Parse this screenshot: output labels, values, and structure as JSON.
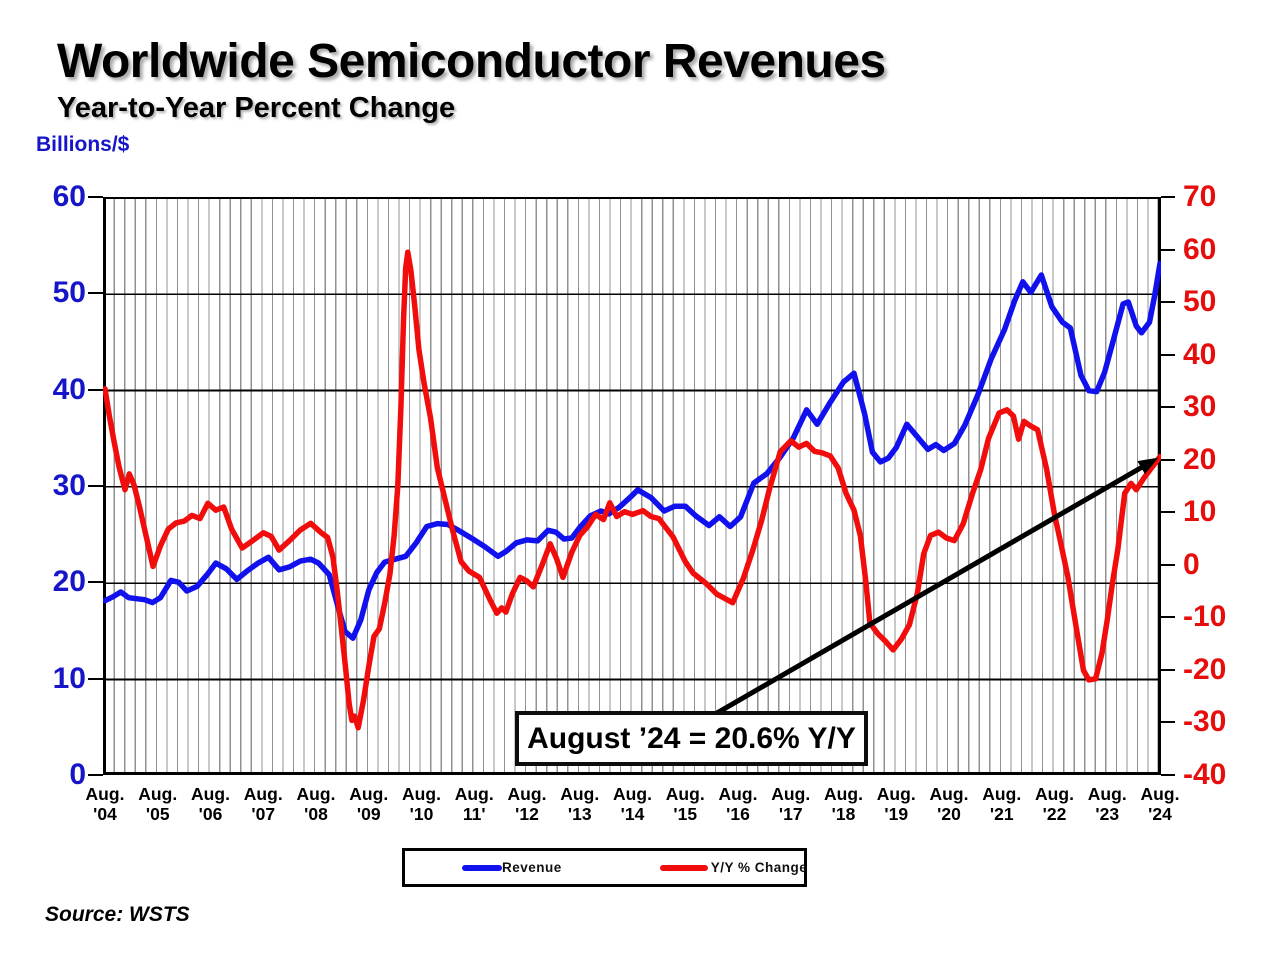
{
  "header": {
    "title": "Worldwide Semiconductor Revenues",
    "subtitle": "Year-to-Year Percent Change"
  },
  "left_axis_unit_label": "Billions/$",
  "source_label": "Source: WSTS",
  "annotation_text": "August ’24 = 20.6% Y/Y",
  "legend": {
    "items": [
      {
        "label": "Revenue",
        "color": "#1111ee"
      },
      {
        "label": "Y/Y % Change",
        "color": "#f20d0d"
      }
    ]
  },
  "chart_data": {
    "type": "line",
    "title": "Worldwide Semiconductor Revenues",
    "subtitle": "Year-to-Year Percent Change",
    "x_unit": "years since Aug 2004 (0 = Aug '04, 20 = Aug '24, monthly data)",
    "x_range": [
      0,
      20
    ],
    "grid": "dense vertical gray lines (5 per year), horizontal black lines each 10 units of left axis",
    "legend_position": "bottom-center boxed",
    "x_tick_labels": [
      [
        "Aug.",
        "'04"
      ],
      [
        "Aug.",
        "'05"
      ],
      [
        "Aug.",
        "'06"
      ],
      [
        "Aug.",
        "'07"
      ],
      [
        "Aug.",
        "'08"
      ],
      [
        "Aug.",
        "'09"
      ],
      [
        "Aug.",
        "'10"
      ],
      [
        "Aug.",
        "11'"
      ],
      [
        "Aug.",
        "'12"
      ],
      [
        "Aug.",
        "'13"
      ],
      [
        "Aug.",
        "'14"
      ],
      [
        "Aug.",
        "'15"
      ],
      [
        "Aug.",
        "'16"
      ],
      [
        "Aug.",
        "'17"
      ],
      [
        "Aug.",
        "'18"
      ],
      [
        "Aug.",
        "'19"
      ],
      [
        "Aug.",
        "'20"
      ],
      [
        "Aug.",
        "'21"
      ],
      [
        "Aug.",
        "'22"
      ],
      [
        "Aug.",
        "'23"
      ],
      [
        "Aug.",
        "'24"
      ]
    ],
    "left_axis": {
      "label": "Billions/$",
      "min": 0,
      "max": 60,
      "ticks": [
        60,
        50,
        40,
        30,
        20,
        10,
        0
      ],
      "color": "#1616c8"
    },
    "right_axis": {
      "label": "Y/Y % Change",
      "min": -40,
      "max": 70,
      "ticks": [
        70,
        60,
        50,
        40,
        30,
        20,
        10,
        0,
        -10,
        -20,
        -30,
        -40
      ],
      "color": "#e60d0d"
    },
    "series": [
      {
        "name": "Revenue",
        "axis": "left",
        "color": "#1111ee",
        "data_name": "revenue-line",
        "points": [
          [
            0,
            18.1
          ],
          [
            0.15,
            18.5
          ],
          [
            0.3,
            19.0
          ],
          [
            0.45,
            18.4
          ],
          [
            0.6,
            18.3
          ],
          [
            0.75,
            18.2
          ],
          [
            0.9,
            17.9
          ],
          [
            1.05,
            18.4
          ],
          [
            1.25,
            20.2
          ],
          [
            1.4,
            20.0
          ],
          [
            1.55,
            19.1
          ],
          [
            1.75,
            19.6
          ],
          [
            1.95,
            20.9
          ],
          [
            2.1,
            22.0
          ],
          [
            2.3,
            21.4
          ],
          [
            2.5,
            20.3
          ],
          [
            2.7,
            21.2
          ],
          [
            2.9,
            22.0
          ],
          [
            3.1,
            22.6
          ],
          [
            3.3,
            21.3
          ],
          [
            3.5,
            21.6
          ],
          [
            3.7,
            22.2
          ],
          [
            3.9,
            22.4
          ],
          [
            4.05,
            22.0
          ],
          [
            4.25,
            20.8
          ],
          [
            4.4,
            17.8
          ],
          [
            4.55,
            14.9
          ],
          [
            4.7,
            14.2
          ],
          [
            4.85,
            16.1
          ],
          [
            5.0,
            19.2
          ],
          [
            5.15,
            21.0
          ],
          [
            5.3,
            22.1
          ],
          [
            5.5,
            22.4
          ],
          [
            5.7,
            22.7
          ],
          [
            5.9,
            24.1
          ],
          [
            6.1,
            25.8
          ],
          [
            6.3,
            26.1
          ],
          [
            6.5,
            26.0
          ],
          [
            6.7,
            25.4
          ],
          [
            7.0,
            24.4
          ],
          [
            7.2,
            23.7
          ],
          [
            7.45,
            22.7
          ],
          [
            7.6,
            23.2
          ],
          [
            7.8,
            24.1
          ],
          [
            8.0,
            24.4
          ],
          [
            8.2,
            24.3
          ],
          [
            8.4,
            25.4
          ],
          [
            8.55,
            25.2
          ],
          [
            8.7,
            24.5
          ],
          [
            8.85,
            24.6
          ],
          [
            9.0,
            25.7
          ],
          [
            9.2,
            26.9
          ],
          [
            9.4,
            27.4
          ],
          [
            9.55,
            27.1
          ],
          [
            9.75,
            27.8
          ],
          [
            9.95,
            28.8
          ],
          [
            10.1,
            29.6
          ],
          [
            10.35,
            28.8
          ],
          [
            10.6,
            27.4
          ],
          [
            10.8,
            27.9
          ],
          [
            11.0,
            27.9
          ],
          [
            11.2,
            26.9
          ],
          [
            11.45,
            25.9
          ],
          [
            11.65,
            26.8
          ],
          [
            11.85,
            25.8
          ],
          [
            12.05,
            26.8
          ],
          [
            12.3,
            30.3
          ],
          [
            12.55,
            31.3
          ],
          [
            12.8,
            33.0
          ],
          [
            13.05,
            35.0
          ],
          [
            13.3,
            37.9
          ],
          [
            13.5,
            36.4
          ],
          [
            13.75,
            38.7
          ],
          [
            14.0,
            40.8
          ],
          [
            14.2,
            41.7
          ],
          [
            14.4,
            37.5
          ],
          [
            14.55,
            33.5
          ],
          [
            14.7,
            32.5
          ],
          [
            14.85,
            32.9
          ],
          [
            15.0,
            34.0
          ],
          [
            15.2,
            36.4
          ],
          [
            15.4,
            35.1
          ],
          [
            15.6,
            33.8
          ],
          [
            15.75,
            34.3
          ],
          [
            15.9,
            33.7
          ],
          [
            16.1,
            34.4
          ],
          [
            16.3,
            36.3
          ],
          [
            16.55,
            39.5
          ],
          [
            16.8,
            43.2
          ],
          [
            17.05,
            46.2
          ],
          [
            17.25,
            49.3
          ],
          [
            17.4,
            51.2
          ],
          [
            17.55,
            50.1
          ],
          [
            17.75,
            51.9
          ],
          [
            17.95,
            48.6
          ],
          [
            18.15,
            47.0
          ],
          [
            18.3,
            46.4
          ],
          [
            18.5,
            41.5
          ],
          [
            18.65,
            39.9
          ],
          [
            18.8,
            39.8
          ],
          [
            18.95,
            41.8
          ],
          [
            19.1,
            44.8
          ],
          [
            19.3,
            48.9
          ],
          [
            19.4,
            49.1
          ],
          [
            19.55,
            46.6
          ],
          [
            19.65,
            45.9
          ],
          [
            19.8,
            47.0
          ],
          [
            19.9,
            49.8
          ],
          [
            20.0,
            53.1
          ]
        ]
      },
      {
        "name": "Y/Y % Change",
        "axis": "right",
        "color": "#f20d0d",
        "data_name": "yoy-line",
        "points": [
          [
            0,
            33.5
          ],
          [
            0.08,
            28.5
          ],
          [
            0.17,
            23.5
          ],
          [
            0.27,
            18.5
          ],
          [
            0.38,
            14.3
          ],
          [
            0.46,
            17.3
          ],
          [
            0.55,
            15.2
          ],
          [
            0.65,
            11.2
          ],
          [
            0.78,
            5.5
          ],
          [
            0.91,
            -0.3
          ],
          [
            1.05,
            3.6
          ],
          [
            1.2,
            6.8
          ],
          [
            1.35,
            8.0
          ],
          [
            1.5,
            8.3
          ],
          [
            1.65,
            9.4
          ],
          [
            1.8,
            8.8
          ],
          [
            1.95,
            11.7
          ],
          [
            2.1,
            10.4
          ],
          [
            2.25,
            11.0
          ],
          [
            2.4,
            6.8
          ],
          [
            2.6,
            3.2
          ],
          [
            2.8,
            4.6
          ],
          [
            3.0,
            6.1
          ],
          [
            3.15,
            5.4
          ],
          [
            3.3,
            2.8
          ],
          [
            3.5,
            4.6
          ],
          [
            3.7,
            6.6
          ],
          [
            3.9,
            7.9
          ],
          [
            4.1,
            6.1
          ],
          [
            4.22,
            5.2
          ],
          [
            4.32,
            1.5
          ],
          [
            4.4,
            -4.8
          ],
          [
            4.48,
            -12.0
          ],
          [
            4.56,
            -19.5
          ],
          [
            4.63,
            -26.5
          ],
          [
            4.68,
            -29.6
          ],
          [
            4.73,
            -28.8
          ],
          [
            4.8,
            -31.0
          ],
          [
            4.9,
            -25.8
          ],
          [
            5.0,
            -19.3
          ],
          [
            5.1,
            -13.6
          ],
          [
            5.2,
            -12.2
          ],
          [
            5.3,
            -7.4
          ],
          [
            5.4,
            -1.8
          ],
          [
            5.48,
            5.5
          ],
          [
            5.55,
            15.0
          ],
          [
            5.61,
            30.0
          ],
          [
            5.66,
            47.0
          ],
          [
            5.7,
            56.5
          ],
          [
            5.74,
            59.5
          ],
          [
            5.8,
            56.0
          ],
          [
            5.87,
            49.5
          ],
          [
            5.95,
            41.0
          ],
          [
            6.05,
            34.5
          ],
          [
            6.17,
            28.0
          ],
          [
            6.3,
            18.5
          ],
          [
            6.45,
            12.3
          ],
          [
            6.6,
            6.2
          ],
          [
            6.75,
            0.6
          ],
          [
            6.9,
            -1.2
          ],
          [
            7.1,
            -2.4
          ],
          [
            7.3,
            -6.7
          ],
          [
            7.43,
            -9.2
          ],
          [
            7.52,
            -8.2
          ],
          [
            7.6,
            -9.0
          ],
          [
            7.72,
            -5.6
          ],
          [
            7.87,
            -2.4
          ],
          [
            8.0,
            -3.1
          ],
          [
            8.12,
            -4.2
          ],
          [
            8.3,
            0.3
          ],
          [
            8.44,
            4.0
          ],
          [
            8.56,
            1.2
          ],
          [
            8.68,
            -2.4
          ],
          [
            8.85,
            2.4
          ],
          [
            9.0,
            5.6
          ],
          [
            9.15,
            7.3
          ],
          [
            9.3,
            9.6
          ],
          [
            9.45,
            8.6
          ],
          [
            9.57,
            11.8
          ],
          [
            9.7,
            9.2
          ],
          [
            9.85,
            10.1
          ],
          [
            10.0,
            9.6
          ],
          [
            10.2,
            10.3
          ],
          [
            10.35,
            9.2
          ],
          [
            10.5,
            8.8
          ],
          [
            10.77,
            5.3
          ],
          [
            11.0,
            0.6
          ],
          [
            11.15,
            -1.6
          ],
          [
            11.4,
            -3.6
          ],
          [
            11.6,
            -5.6
          ],
          [
            11.75,
            -6.4
          ],
          [
            11.9,
            -7.2
          ],
          [
            12.1,
            -2.6
          ],
          [
            12.28,
            2.8
          ],
          [
            12.45,
            8.5
          ],
          [
            12.6,
            14.5
          ],
          [
            12.8,
            21.5
          ],
          [
            13.0,
            23.6
          ],
          [
            13.15,
            22.4
          ],
          [
            13.3,
            23.1
          ],
          [
            13.45,
            21.6
          ],
          [
            13.6,
            21.3
          ],
          [
            13.75,
            20.7
          ],
          [
            13.9,
            18.4
          ],
          [
            14.05,
            13.6
          ],
          [
            14.2,
            10.4
          ],
          [
            14.32,
            5.5
          ],
          [
            14.42,
            -3.0
          ],
          [
            14.5,
            -11.1
          ],
          [
            14.65,
            -13.1
          ],
          [
            14.8,
            -14.6
          ],
          [
            14.94,
            -16.2
          ],
          [
            15.1,
            -14.1
          ],
          [
            15.25,
            -11.4
          ],
          [
            15.4,
            -5.4
          ],
          [
            15.52,
            2.1
          ],
          [
            15.65,
            5.6
          ],
          [
            15.8,
            6.2
          ],
          [
            15.95,
            5.1
          ],
          [
            16.1,
            4.6
          ],
          [
            16.27,
            7.8
          ],
          [
            16.45,
            13.7
          ],
          [
            16.6,
            18.1
          ],
          [
            16.75,
            24.1
          ],
          [
            16.95,
            28.9
          ],
          [
            17.1,
            29.5
          ],
          [
            17.22,
            28.3
          ],
          [
            17.32,
            23.9
          ],
          [
            17.42,
            27.3
          ],
          [
            17.55,
            26.4
          ],
          [
            17.68,
            25.7
          ],
          [
            17.85,
            18.2
          ],
          [
            18.0,
            9.6
          ],
          [
            18.12,
            4.1
          ],
          [
            18.25,
            -2.1
          ],
          [
            18.35,
            -8.2
          ],
          [
            18.45,
            -14.2
          ],
          [
            18.55,
            -20.1
          ],
          [
            18.65,
            -21.9
          ],
          [
            18.78,
            -21.7
          ],
          [
            18.9,
            -16.8
          ],
          [
            19.0,
            -10.4
          ],
          [
            19.1,
            -3.4
          ],
          [
            19.2,
            2.9
          ],
          [
            19.33,
            13.6
          ],
          [
            19.45,
            15.5
          ],
          [
            19.55,
            14.3
          ],
          [
            19.7,
            16.6
          ],
          [
            19.85,
            18.6
          ],
          [
            20.0,
            20.6
          ]
        ]
      }
    ],
    "annotation": {
      "text": "August ’24 = 20.6% Y/Y",
      "points_at": {
        "t": 20,
        "value": 20.6,
        "axis": "right"
      },
      "arrow": {
        "from_t": 11.55,
        "from_value": -28.5,
        "to_t": 19.97,
        "to_value": 20.4,
        "axis": "right",
        "color": "#000000"
      }
    }
  }
}
